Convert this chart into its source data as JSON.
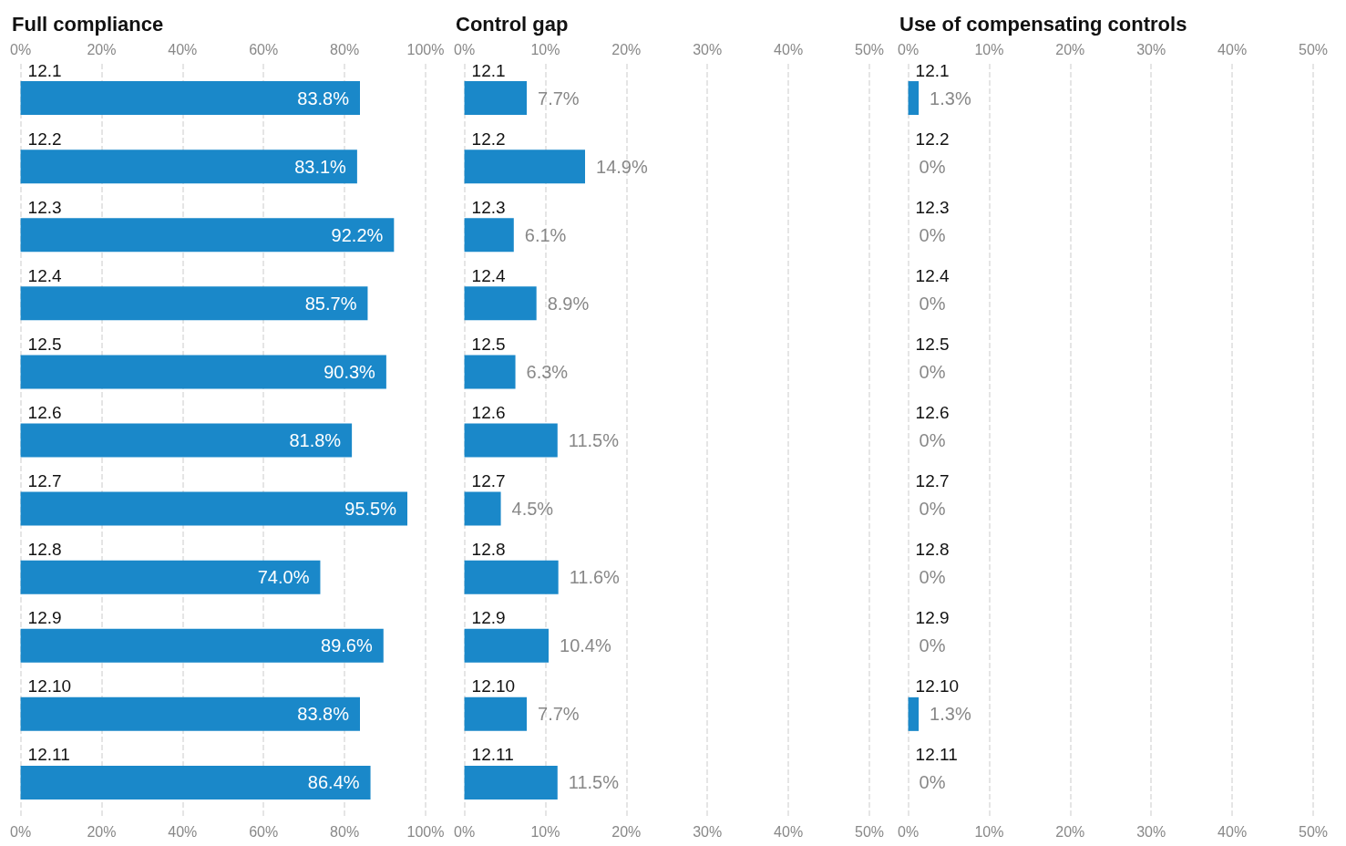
{
  "chart_data": [
    {
      "type": "bar",
      "orientation": "horizontal",
      "title": "Full compliance",
      "categories": [
        "12.1",
        "12.2",
        "12.3",
        "12.4",
        "12.5",
        "12.6",
        "12.7",
        "12.8",
        "12.9",
        "12.10",
        "12.11"
      ],
      "series": [
        {
          "color": "#1a88c9",
          "values": [
            83.8,
            83.1,
            92.2,
            85.7,
            90.3,
            81.8,
            95.5,
            74.0,
            89.6,
            83.8,
            86.4
          ],
          "value_labels": [
            "83.8%",
            "83.1%",
            "92.2%",
            "85.7%",
            "90.3%",
            "81.8%",
            "95.5%",
            "74.0%",
            "89.6%",
            "83.8%",
            "86.4%"
          ]
        }
      ],
      "xlim": [
        0,
        100
      ],
      "xticks": [
        {
          "value": 0,
          "label": "0%"
        },
        {
          "value": 20,
          "label": "20%"
        },
        {
          "value": 40,
          "label": "40%"
        },
        {
          "value": 60,
          "label": "60%"
        },
        {
          "value": 80,
          "label": "80%"
        },
        {
          "value": 100,
          "label": "100%"
        }
      ],
      "x2lim": [
        0,
        100
      ],
      "x2ticks": [
        {
          "value": 0,
          "label": "0%"
        },
        {
          "value": 20,
          "label": "20%"
        },
        {
          "value": 40,
          "label": "40%"
        },
        {
          "value": 60,
          "label": "60%"
        },
        {
          "value": 80,
          "label": "80%"
        },
        {
          "value": 100,
          "label": "100%"
        }
      ],
      "grid": "x"
    },
    {
      "type": "bar",
      "orientation": "horizontal",
      "title": "Control gap",
      "categories": [
        "12.1",
        "12.2",
        "12.3",
        "12.4",
        "12.5",
        "12.6",
        "12.7",
        "12.8",
        "12.9",
        "12.10",
        "12.11"
      ],
      "series": [
        {
          "color": "#1a88c9",
          "values": [
            7.7,
            14.9,
            6.1,
            8.9,
            6.3,
            11.5,
            4.5,
            11.6,
            10.4,
            7.7,
            11.5
          ],
          "value_labels": [
            "7.7%",
            "14.9%",
            "6.1%",
            "8.9%",
            "6.3%",
            "11.5%",
            "4.5%",
            "11.6%",
            "10.4%",
            "7.7%",
            "11.5%"
          ]
        }
      ],
      "xlim": [
        0,
        50
      ],
      "xticks": [
        {
          "value": 0,
          "label": "0%"
        },
        {
          "value": 10,
          "label": "10%"
        },
        {
          "value": 20,
          "label": "20%"
        },
        {
          "value": 30,
          "label": "30%"
        },
        {
          "value": 40,
          "label": "40%"
        },
        {
          "value": 50,
          "label": "50%"
        }
      ],
      "x2lim": [
        0,
        50
      ],
      "x2ticks": [
        {
          "value": 0,
          "label": "0%"
        },
        {
          "value": 10,
          "label": "10%"
        },
        {
          "value": 20,
          "label": "20%"
        },
        {
          "value": 30,
          "label": "30%"
        },
        {
          "value": 40,
          "label": "40%"
        },
        {
          "value": 50,
          "label": "50%"
        }
      ],
      "grid": "x"
    },
    {
      "type": "bar",
      "orientation": "horizontal",
      "title": "Use of compensating controls",
      "categories": [
        "12.1",
        "12.2",
        "12.3",
        "12.4",
        "12.5",
        "12.6",
        "12.7",
        "12.8",
        "12.9",
        "12.10",
        "12.11"
      ],
      "series": [
        {
          "color": "#1a88c9",
          "values": [
            1.3,
            0,
            0,
            0,
            0,
            0,
            0,
            0,
            0,
            1.3,
            0
          ],
          "value_labels": [
            "1.3%",
            "0%",
            "0%",
            "0%",
            "0%",
            "0%",
            "0%",
            "0%",
            "0%",
            "1.3%",
            "0%"
          ]
        }
      ],
      "xlim": [
        0,
        50
      ],
      "xticks": [
        {
          "value": 0,
          "label": "0%"
        },
        {
          "value": 10,
          "label": "10%"
        },
        {
          "value": 20,
          "label": "20%"
        },
        {
          "value": 30,
          "label": "30%"
        },
        {
          "value": 40,
          "label": "40%"
        },
        {
          "value": 50,
          "label": "50%"
        }
      ],
      "x2lim": [
        0,
        50
      ],
      "x2ticks": [
        {
          "value": 0,
          "label": "0%"
        },
        {
          "value": 10,
          "label": "10%"
        },
        {
          "value": 20,
          "label": "20%"
        },
        {
          "value": 30,
          "label": "30%"
        },
        {
          "value": 40,
          "label": "40%"
        },
        {
          "value": 50,
          "label": "50%"
        }
      ],
      "grid": "x"
    }
  ]
}
